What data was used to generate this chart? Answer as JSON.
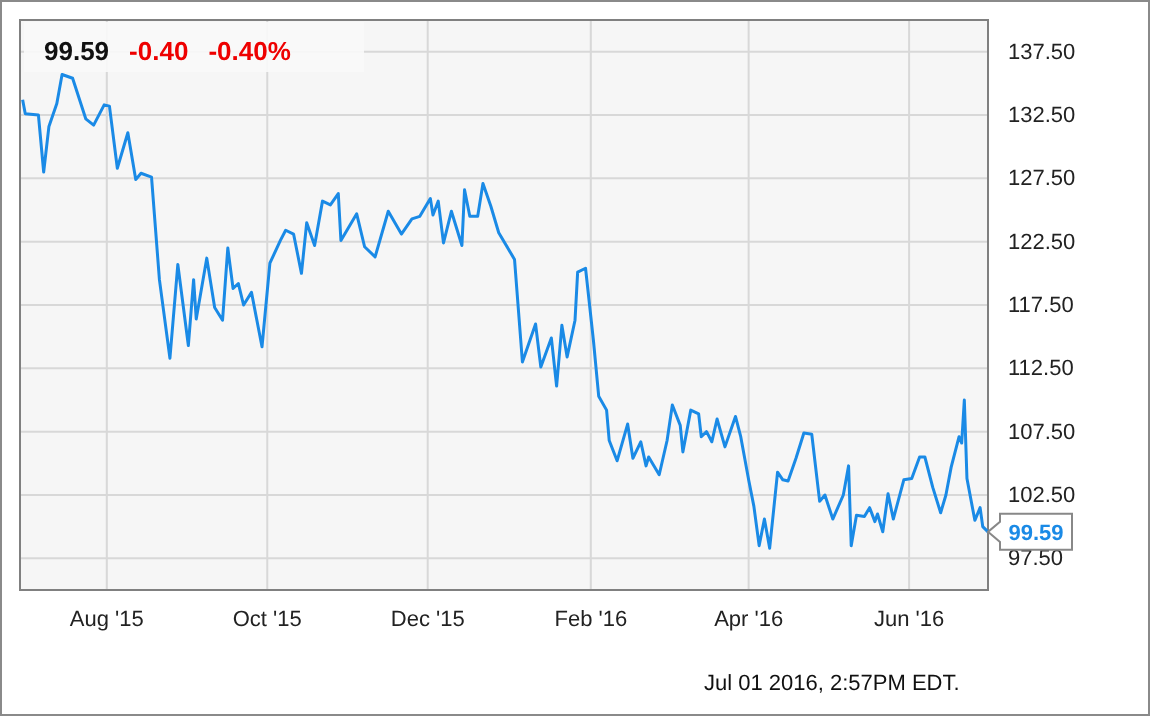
{
  "chart_data": {
    "type": "line",
    "title": "99.59",
    "annotations": [
      "-0.40",
      "-0.40%",
      "Jul 01 2016, 2:57PM EDT.",
      {
        "text": "99.59",
        "x": "2016-07-01",
        "y": 99.59
      }
    ],
    "x": [
      "2015-06-30",
      "2015-07-01",
      "2015-07-06",
      "2015-07-08",
      "2015-07-10",
      "2015-07-13",
      "2015-07-15",
      "2015-07-19",
      "2015-07-24",
      "2015-07-27",
      "2015-07-31",
      "2015-08-02",
      "2015-08-05",
      "2015-08-09",
      "2015-08-12",
      "2015-08-14",
      "2015-08-18",
      "2015-08-21",
      "2015-08-25",
      "2015-08-28",
      "2015-09-01",
      "2015-09-03",
      "2015-09-04",
      "2015-09-08",
      "2015-09-11",
      "2015-09-14",
      "2015-09-16",
      "2015-09-18",
      "2015-09-20",
      "2015-09-22",
      "2015-09-25",
      "2015-09-29",
      "2015-10-02",
      "2015-10-06",
      "2015-10-08",
      "2015-10-11",
      "2015-10-14",
      "2015-10-16",
      "2015-10-19",
      "2015-10-22",
      "2015-10-25",
      "2015-10-28",
      "2015-10-29",
      "2015-11-04",
      "2015-11-07",
      "2015-11-11",
      "2015-11-16",
      "2015-11-21",
      "2015-11-25",
      "2015-11-28",
      "2015-12-02",
      "2015-12-03",
      "2015-12-05",
      "2015-12-07",
      "2015-12-10",
      "2015-12-14",
      "2015-12-15",
      "2015-12-17",
      "2015-12-20",
      "2015-12-22",
      "2015-12-25",
      "2015-12-28",
      "2016-01-03",
      "2016-01-06",
      "2016-01-11",
      "2016-01-13",
      "2016-01-17",
      "2016-01-19",
      "2016-01-21",
      "2016-01-23",
      "2016-01-26",
      "2016-01-27",
      "2016-01-30",
      "2016-02-02",
      "2016-02-04",
      "2016-02-07",
      "2016-02-08",
      "2016-02-11",
      "2016-02-15",
      "2016-02-17",
      "2016-02-20",
      "2016-02-22",
      "2016-02-23",
      "2016-02-27",
      "2016-03-01",
      "2016-03-03",
      "2016-03-06",
      "2016-03-07",
      "2016-03-10",
      "2016-03-13",
      "2016-03-14",
      "2016-03-16",
      "2016-03-18",
      "2016-03-20",
      "2016-03-23",
      "2016-03-27",
      "2016-03-29",
      "2016-04-01",
      "2016-04-03",
      "2016-04-05",
      "2016-04-07",
      "2016-04-09",
      "2016-04-12",
      "2016-04-14",
      "2016-04-16",
      "2016-04-19",
      "2016-04-22",
      "2016-04-25",
      "2016-04-28",
      "2016-04-30",
      "2016-05-03",
      "2016-05-07",
      "2016-05-09",
      "2016-05-10",
      "2016-05-12",
      "2016-05-15",
      "2016-05-17",
      "2016-05-19",
      "2016-05-20",
      "2016-05-22",
      "2016-05-24",
      "2016-05-26",
      "2016-05-30",
      "2016-06-02",
      "2016-06-05",
      "2016-06-07",
      "2016-06-10",
      "2016-06-13",
      "2016-06-15",
      "2016-06-17",
      "2016-06-20",
      "2016-06-21",
      "2016-06-22",
      "2016-06-23",
      "2016-06-26",
      "2016-06-28",
      "2016-06-29",
      "2016-07-01"
    ],
    "series": [
      {
        "color": "#1a8ae6",
        "values": [
          133.7,
          132.6,
          132.5,
          128.0,
          131.6,
          133.4,
          135.7,
          135.4,
          132.2,
          131.7,
          133.3,
          133.2,
          128.3,
          131.1,
          127.4,
          127.9,
          127.6,
          119.5,
          113.3,
          120.7,
          114.3,
          119.5,
          116.4,
          121.2,
          117.3,
          116.3,
          122.0,
          118.8,
          119.2,
          117.5,
          118.5,
          114.2,
          120.8,
          122.6,
          123.4,
          123.1,
          120.0,
          124.0,
          122.2,
          125.7,
          125.4,
          126.3,
          122.6,
          124.7,
          122.1,
          121.3,
          124.9,
          123.1,
          124.3,
          124.5,
          125.9,
          124.6,
          125.7,
          122.4,
          124.9,
          122.2,
          126.6,
          124.5,
          124.5,
          127.1,
          125.3,
          123.2,
          121.1,
          113.0,
          116.0,
          112.6,
          114.9,
          111.1,
          115.9,
          113.4,
          116.3,
          120.1,
          120.4,
          114.7,
          110.3,
          109.2,
          106.8,
          105.2,
          108.1,
          105.4,
          106.7,
          104.8,
          105.5,
          104.1,
          106.8,
          109.6,
          108.0,
          105.9,
          109.2,
          108.9,
          107.1,
          107.5,
          106.7,
          108.5,
          106.3,
          108.7,
          107.1,
          103.7,
          101.6,
          98.5,
          100.6,
          98.3,
          104.3,
          103.7,
          103.6,
          105.4,
          107.4,
          107.3,
          102.0,
          102.5,
          100.6,
          102.5,
          104.8,
          98.5,
          100.9,
          100.8,
          101.5,
          100.4,
          101.0,
          99.6,
          102.6,
          100.6,
          103.7,
          103.8,
          105.5,
          105.5,
          103.1,
          101.1,
          102.5,
          104.7,
          107.1,
          106.6,
          110.0,
          103.8,
          100.5,
          101.5,
          100.0,
          99.59
        ]
      }
    ],
    "xlim": [
      "2015-06-29",
      "2016-07-01"
    ],
    "xticks": [
      {
        "value": "2015-08-01",
        "label": "Aug '15"
      },
      {
        "value": "2015-10-01",
        "label": "Oct '15"
      },
      {
        "value": "2015-12-01",
        "label": "Dec '15"
      },
      {
        "value": "2016-02-01",
        "label": "Feb '16"
      },
      {
        "value": "2016-04-01",
        "label": "Apr '16"
      },
      {
        "value": "2016-06-01",
        "label": "Jun '16"
      }
    ],
    "ylim": [
      95,
      140
    ],
    "yticks": [
      {
        "value": 97.5,
        "label": "97.50"
      },
      {
        "value": 102.5,
        "label": "102.50"
      },
      {
        "value": 107.5,
        "label": "107.50"
      },
      {
        "value": 112.5,
        "label": "112.50"
      },
      {
        "value": 117.5,
        "label": "117.50"
      },
      {
        "value": 122.5,
        "label": "122.50"
      },
      {
        "value": 127.5,
        "label": "127.50"
      },
      {
        "value": 132.5,
        "label": "132.50"
      },
      {
        "value": 137.5,
        "label": "137.50"
      }
    ],
    "grid": true,
    "marker": "none",
    "line_style": "solid"
  }
}
